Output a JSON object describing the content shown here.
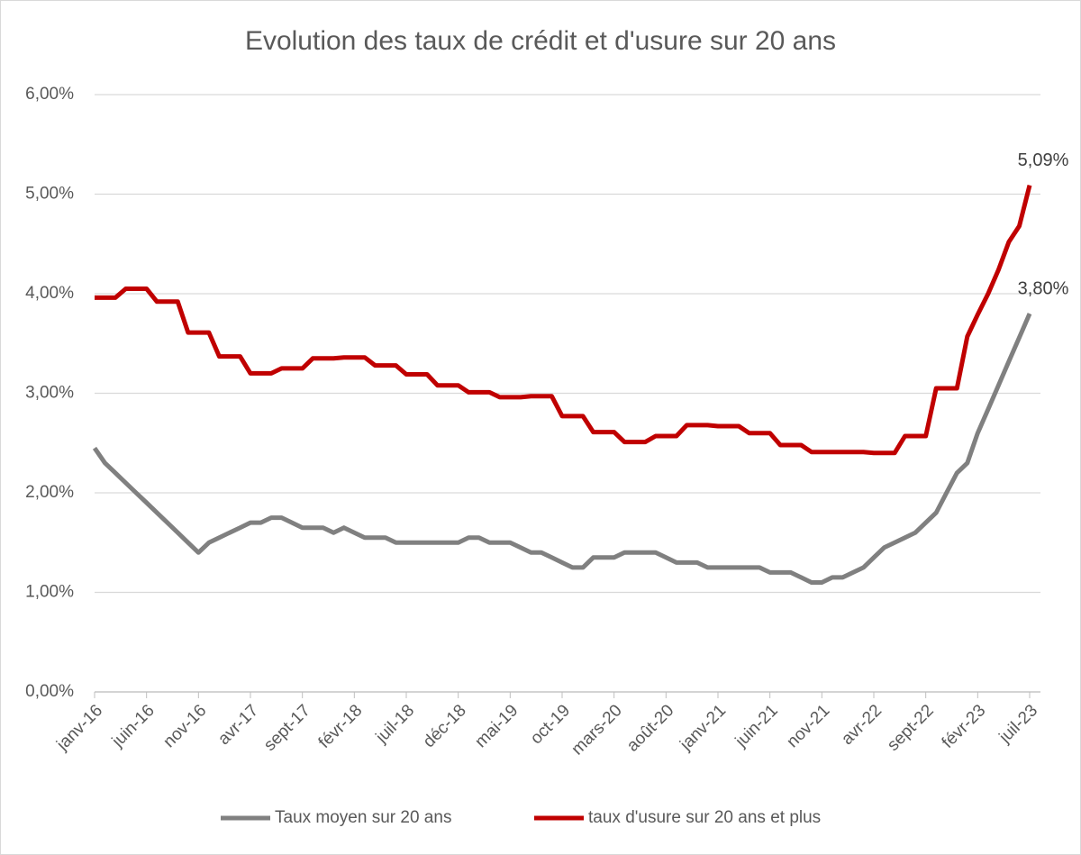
{
  "chart_data": {
    "type": "line",
    "title": "Evolution des taux de crédit et d'usure sur 20 ans",
    "categories": [
      "janv-16",
      null,
      null,
      null,
      null,
      "juin-16",
      null,
      null,
      null,
      null,
      "nov-16",
      null,
      null,
      null,
      null,
      "avr-17",
      null,
      null,
      null,
      null,
      "sept-17",
      null,
      null,
      null,
      null,
      "févr-18",
      null,
      null,
      null,
      null,
      "juil-18",
      null,
      null,
      null,
      null,
      "déc-18",
      null,
      null,
      null,
      null,
      "mai-19",
      null,
      null,
      null,
      null,
      "oct-19",
      null,
      null,
      null,
      null,
      "mars-20",
      null,
      null,
      null,
      null,
      "août-20",
      null,
      null,
      null,
      null,
      "janv-21",
      null,
      null,
      null,
      null,
      "juin-21",
      null,
      null,
      null,
      null,
      "nov-21",
      null,
      null,
      null,
      null,
      "avr-22",
      null,
      null,
      null,
      null,
      "sept-22",
      null,
      null,
      null,
      null,
      "févr-23",
      null,
      null,
      null,
      null,
      "juil-23"
    ],
    "series": [
      {
        "name": "Taux moyen sur 20 ans",
        "color": "#808080",
        "values": [
          2.45,
          2.3,
          2.2,
          2.1,
          2.0,
          1.9,
          1.8,
          1.7,
          1.6,
          1.5,
          1.4,
          1.5,
          1.55,
          1.6,
          1.65,
          1.7,
          1.7,
          1.75,
          1.75,
          1.7,
          1.65,
          1.65,
          1.65,
          1.6,
          1.65,
          1.6,
          1.55,
          1.55,
          1.55,
          1.5,
          1.5,
          1.5,
          1.5,
          1.5,
          1.5,
          1.5,
          1.55,
          1.55,
          1.5,
          1.5,
          1.5,
          1.45,
          1.4,
          1.4,
          1.35,
          1.3,
          1.25,
          1.25,
          1.35,
          1.35,
          1.35,
          1.4,
          1.4,
          1.4,
          1.4,
          1.35,
          1.3,
          1.3,
          1.3,
          1.25,
          1.25,
          1.25,
          1.25,
          1.25,
          1.25,
          1.2,
          1.2,
          1.2,
          1.15,
          1.1,
          1.1,
          1.15,
          1.15,
          1.2,
          1.25,
          1.35,
          1.45,
          1.5,
          1.55,
          1.6,
          1.7,
          1.8,
          2.0,
          2.2,
          2.3,
          2.6,
          2.84,
          3.08,
          3.32,
          3.56,
          3.8
        ],
        "value_labels": [
          null,
          null,
          null,
          null,
          null,
          null,
          null,
          null,
          null,
          null,
          null,
          null,
          null,
          null,
          null,
          null,
          null,
          null,
          null,
          null,
          null,
          null,
          null,
          null,
          null,
          null,
          null,
          null,
          null,
          null,
          null,
          null,
          null,
          null,
          null,
          null,
          null,
          null,
          null,
          null,
          null,
          null,
          null,
          null,
          null,
          null,
          null,
          null,
          null,
          null,
          null,
          null,
          null,
          null,
          null,
          null,
          null,
          null,
          null,
          null,
          null,
          null,
          null,
          null,
          null,
          null,
          null,
          null,
          null,
          null,
          null,
          null,
          null,
          null,
          null,
          null,
          null,
          null,
          null,
          null,
          null,
          null,
          null,
          null,
          null,
          null,
          null,
          null,
          null,
          null,
          "3,80%"
        ]
      },
      {
        "name": "taux d'usure sur 20 ans et plus",
        "color": "#c00000",
        "values": [
          3.96,
          3.96,
          3.96,
          4.05,
          4.05,
          4.05,
          3.92,
          3.92,
          3.92,
          3.61,
          3.61,
          3.61,
          3.37,
          3.37,
          3.37,
          3.2,
          3.2,
          3.2,
          3.25,
          3.25,
          3.25,
          3.35,
          3.35,
          3.35,
          3.36,
          3.36,
          3.36,
          3.28,
          3.28,
          3.28,
          3.19,
          3.19,
          3.19,
          3.08,
          3.08,
          3.08,
          3.01,
          3.01,
          3.01,
          2.96,
          2.96,
          2.96,
          2.97,
          2.97,
          2.97,
          2.77,
          2.77,
          2.77,
          2.61,
          2.61,
          2.61,
          2.51,
          2.51,
          2.51,
          2.57,
          2.57,
          2.57,
          2.68,
          2.68,
          2.68,
          2.67,
          2.67,
          2.67,
          2.6,
          2.6,
          2.6,
          2.48,
          2.48,
          2.48,
          2.41,
          2.41,
          2.41,
          2.41,
          2.41,
          2.41,
          2.4,
          2.4,
          2.4,
          2.57,
          2.57,
          2.57,
          3.05,
          3.05,
          3.05,
          3.57,
          3.79,
          4.0,
          4.24,
          4.52,
          4.68,
          5.09
        ],
        "value_labels": [
          null,
          null,
          null,
          null,
          null,
          null,
          null,
          null,
          null,
          null,
          null,
          null,
          null,
          null,
          null,
          null,
          null,
          null,
          null,
          null,
          null,
          null,
          null,
          null,
          null,
          null,
          null,
          null,
          null,
          null,
          null,
          null,
          null,
          null,
          null,
          null,
          null,
          null,
          null,
          null,
          null,
          null,
          null,
          null,
          null,
          null,
          null,
          null,
          null,
          null,
          null,
          null,
          null,
          null,
          null,
          null,
          null,
          null,
          null,
          null,
          null,
          null,
          null,
          null,
          null,
          null,
          null,
          null,
          null,
          null,
          null,
          null,
          null,
          null,
          null,
          null,
          null,
          null,
          null,
          null,
          null,
          null,
          null,
          null,
          null,
          null,
          null,
          null,
          null,
          null,
          "5,09%"
        ]
      }
    ],
    "ylim": [
      0,
      6
    ],
    "yticks": [
      {
        "value": 0,
        "label": "0,00%"
      },
      {
        "value": 1,
        "label": "1,00%"
      },
      {
        "value": 2,
        "label": "2,00%"
      },
      {
        "value": 3,
        "label": "3,00%"
      },
      {
        "value": 4,
        "label": "4,00%"
      },
      {
        "value": 5,
        "label": "5,00%"
      },
      {
        "value": 6,
        "label": "6,00%"
      }
    ],
    "grid": true,
    "legend": "bottom"
  }
}
